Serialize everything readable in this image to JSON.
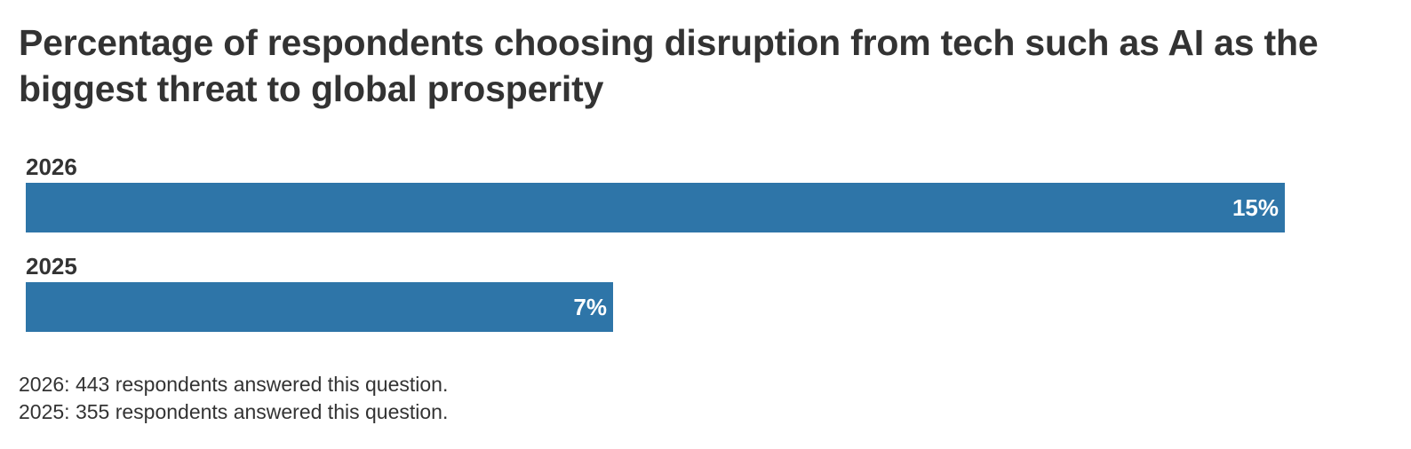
{
  "chart_data": {
    "type": "bar",
    "orientation": "horizontal",
    "title": "Percentage of respondents choosing disruption from tech such as AI as the biggest threat to global prosperity",
    "categories": [
      "2026",
      "2025"
    ],
    "values": [
      15,
      7
    ],
    "value_labels": [
      "15%",
      "7%"
    ],
    "unit": "%",
    "xlim": [
      0,
      16.2
    ],
    "xlabel": "",
    "ylabel": "",
    "grid": false,
    "color": "#2e75a8"
  },
  "notes": [
    "2026: 443 respondents answered this question.",
    "2025: 355 respondents answered this question."
  ]
}
